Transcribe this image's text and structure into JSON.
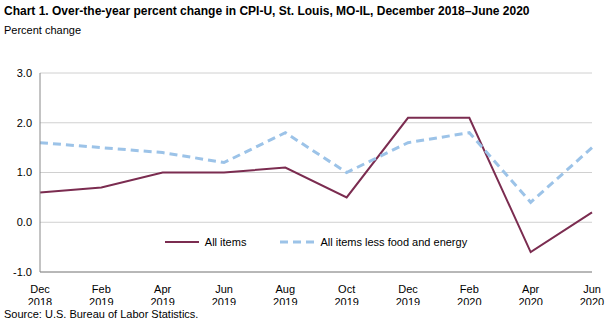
{
  "chart_data": {
    "type": "line",
    "title": "Chart 1. Over-the-year percent change in CPI-U, St. Louis, MO-IL, December 2018–June 2020",
    "y_label": "Percent change",
    "source": "Source: U.S. Bureau of Labor Statistics.",
    "categories": [
      "Dec 2018",
      "Feb 2019",
      "Apr 2019",
      "Jun 2019",
      "Aug 2019",
      "Oct 2019",
      "Dec 2019",
      "Feb 2020",
      "Apr 2020",
      "Jun 2020"
    ],
    "series": [
      {
        "name": "All items",
        "color": "#7b2c50",
        "line_style": "solid",
        "values": [
          0.6,
          0.7,
          1.0,
          1.0,
          1.1,
          0.5,
          2.1,
          2.1,
          -0.6,
          0.2
        ]
      },
      {
        "name": "All items less food and energy",
        "color": "#9cc3e8",
        "line_style": "dashed",
        "values": [
          1.6,
          1.5,
          1.4,
          1.2,
          1.8,
          1.0,
          1.6,
          1.8,
          0.4,
          1.5
        ]
      }
    ],
    "ylim": [
      -1,
      3
    ],
    "yticks": [
      {
        "value": -1,
        "label": "-1.0"
      },
      {
        "value": 0,
        "label": "0.0"
      },
      {
        "value": 1,
        "label": "1.0"
      },
      {
        "value": 2,
        "label": "2.0"
      },
      {
        "value": 3,
        "label": "3.0"
      }
    ],
    "grid": true,
    "legend": "bottom"
  }
}
